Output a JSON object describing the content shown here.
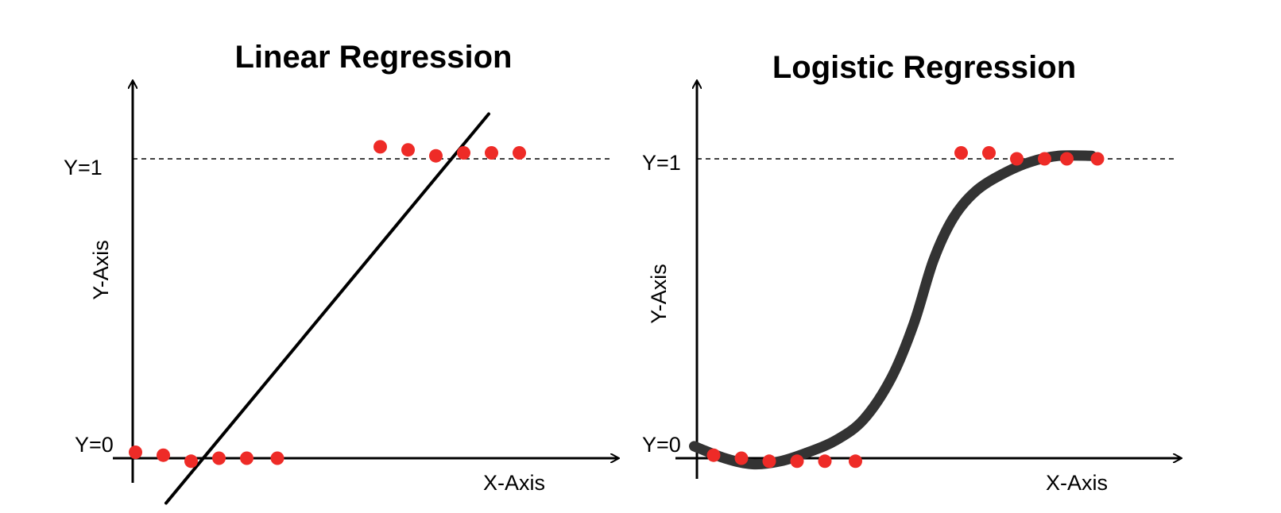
{
  "chart_data": [
    {
      "type": "scatter",
      "title": "Linear Regression",
      "xlabel": "X-Axis",
      "ylabel": "Y-Axis",
      "ytick_labels": [
        "Y=0",
        "Y=1"
      ],
      "xlim": [
        0,
        16
      ],
      "ylim": [
        -0.15,
        1.3
      ],
      "reference_lines": [
        {
          "y": 1,
          "style": "dashed"
        }
      ],
      "series": [
        {
          "points": [
            [
              0.1,
              0.02
            ],
            [
              1.1,
              0.01
            ],
            [
              2.1,
              -0.01
            ],
            [
              3.1,
              0.0
            ],
            [
              4.1,
              0.0
            ],
            [
              5.2,
              0.0
            ],
            [
              8.9,
              1.04
            ],
            [
              9.9,
              1.03
            ],
            [
              10.9,
              1.01
            ],
            [
              11.9,
              1.02
            ],
            [
              12.9,
              1.02
            ],
            [
              13.9,
              1.02
            ]
          ],
          "color": "#ee2b27"
        },
        {
          "type": "line",
          "points": [
            [
              1.2,
              -0.15
            ],
            [
              12.8,
              1.15
            ]
          ],
          "color": "#000000"
        }
      ]
    },
    {
      "type": "scatter",
      "title": "Logistic Regression",
      "xlabel": "X-Axis",
      "ylabel": "Y-Axis",
      "ytick_labels": [
        "Y=0",
        "Y=1"
      ],
      "xlim": [
        0,
        16
      ],
      "ylim": [
        -0.15,
        1.3
      ],
      "reference_lines": [
        {
          "y": 1,
          "style": "dashed"
        }
      ],
      "series": [
        {
          "points": [
            [
              0.6,
              0.01
            ],
            [
              1.6,
              0.0
            ],
            [
              2.6,
              -0.01
            ],
            [
              3.6,
              -0.01
            ],
            [
              4.6,
              -0.01
            ],
            [
              5.7,
              -0.01
            ],
            [
              9.5,
              1.02
            ],
            [
              10.5,
              1.02
            ],
            [
              11.5,
              1.0
            ],
            [
              12.5,
              1.0
            ],
            [
              13.3,
              1.0
            ],
            [
              14.4,
              1.0
            ]
          ],
          "color": "#ee2b27"
        },
        {
          "type": "line",
          "points": [
            [
              -0.1,
              0.04
            ],
            [
              1.0,
              0.0
            ],
            [
              2.0,
              -0.02
            ],
            [
              3.0,
              -0.01
            ],
            [
              4.0,
              0.02
            ],
            [
              5.0,
              0.06
            ],
            [
              6.0,
              0.13
            ],
            [
              7.0,
              0.27
            ],
            [
              7.8,
              0.45
            ],
            [
              8.5,
              0.66
            ],
            [
              9.2,
              0.8
            ],
            [
              10.0,
              0.89
            ],
            [
              11.0,
              0.95
            ],
            [
              12.0,
              0.99
            ],
            [
              13.0,
              1.01
            ],
            [
              14.2,
              1.01
            ]
          ],
          "color": "#333333"
        }
      ]
    }
  ]
}
